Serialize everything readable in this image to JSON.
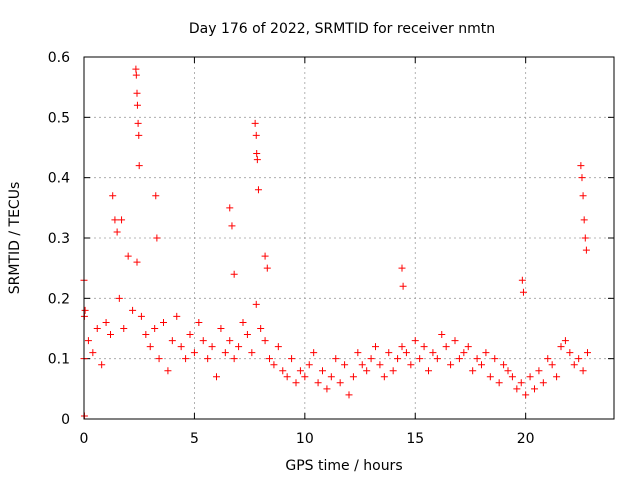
{
  "chart_data": {
    "type": "scatter",
    "title": "Day 176 of 2022, SRMTID for receiver nmtn",
    "xlabel": "GPS time / hours",
    "ylabel": "SRMTID / TECUs",
    "xlim": [
      0,
      24
    ],
    "ylim": [
      0,
      0.6
    ],
    "x_ticks": [
      0,
      5,
      10,
      15,
      20
    ],
    "x_tick_labels": [
      "0",
      "5",
      "10",
      "15",
      "20"
    ],
    "y_ticks": [
      0,
      0.1,
      0.2,
      0.3,
      0.4,
      0.5,
      0.6
    ],
    "y_tick_labels": [
      "0",
      "0.1",
      "0.2",
      "0.3",
      "0.4",
      "0.5",
      "0.6"
    ],
    "grid": true,
    "marker": "plus",
    "color": "#ff0000",
    "series": [
      {
        "name": "SRMTID",
        "x": [
          0.0,
          0.02,
          0.05,
          0.2,
          0.4,
          0.6,
          0.8,
          1.0,
          1.2,
          1.4,
          1.6,
          1.8,
          2.0,
          2.2,
          2.4,
          2.6,
          2.8,
          3.0,
          3.2,
          3.4,
          3.6,
          3.8,
          4.0,
          4.2,
          4.4,
          4.6,
          4.8,
          5.0,
          5.2,
          5.4,
          5.6,
          5.8,
          6.0,
          6.2,
          6.4,
          6.6,
          6.8,
          7.0,
          7.2,
          7.4,
          7.6,
          7.8,
          8.0,
          8.2,
          8.4,
          8.6,
          8.8,
          9.0,
          9.2,
          9.4,
          9.6,
          9.8,
          10.0,
          10.2,
          10.4,
          10.6,
          10.8,
          11.0,
          11.2,
          11.4,
          11.6,
          11.8,
          12.0,
          12.2,
          12.4,
          12.6,
          12.8,
          13.0,
          13.2,
          13.4,
          13.6,
          13.8,
          14.0,
          14.2,
          14.4,
          14.6,
          14.8,
          15.0,
          15.2,
          15.4,
          15.6,
          15.8,
          16.0,
          16.2,
          16.4,
          16.6,
          16.8,
          17.0,
          17.2,
          17.4,
          17.6,
          17.8,
          18.0,
          18.2,
          18.4,
          18.6,
          18.8,
          19.0,
          19.2,
          19.4,
          19.6,
          19.8,
          20.0,
          20.2,
          20.4,
          20.6,
          20.8,
          21.0,
          21.2,
          21.4,
          21.6,
          21.8,
          22.0,
          22.2,
          22.4,
          22.6,
          22.8,
          2.35,
          2.37,
          2.4,
          2.42,
          2.45,
          2.48,
          2.5,
          3.25,
          3.3,
          7.75,
          7.8,
          7.82,
          7.85,
          7.9,
          8.2,
          8.3,
          22.5,
          22.55,
          22.6,
          22.65,
          22.7,
          22.75,
          14.4,
          14.45,
          19.85,
          19.9,
          6.6,
          6.7,
          6.8,
          1.3,
          1.5,
          1.7,
          0.0,
          0.02
        ],
        "y": [
          0.1,
          0.17,
          0.18,
          0.13,
          0.11,
          0.15,
          0.09,
          0.16,
          0.14,
          0.33,
          0.2,
          0.15,
          0.27,
          0.18,
          0.26,
          0.17,
          0.14,
          0.12,
          0.15,
          0.1,
          0.16,
          0.08,
          0.13,
          0.17,
          0.12,
          0.1,
          0.14,
          0.11,
          0.16,
          0.13,
          0.1,
          0.12,
          0.07,
          0.15,
          0.11,
          0.13,
          0.1,
          0.12,
          0.16,
          0.14,
          0.11,
          0.19,
          0.15,
          0.13,
          0.1,
          0.09,
          0.12,
          0.08,
          0.07,
          0.1,
          0.06,
          0.08,
          0.07,
          0.09,
          0.11,
          0.06,
          0.08,
          0.05,
          0.07,
          0.1,
          0.06,
          0.09,
          0.04,
          0.07,
          0.11,
          0.09,
          0.08,
          0.1,
          0.12,
          0.09,
          0.07,
          0.11,
          0.08,
          0.1,
          0.12,
          0.11,
          0.09,
          0.13,
          0.1,
          0.12,
          0.08,
          0.11,
          0.1,
          0.14,
          0.12,
          0.09,
          0.13,
          0.1,
          0.11,
          0.12,
          0.08,
          0.1,
          0.09,
          0.11,
          0.07,
          0.1,
          0.06,
          0.09,
          0.08,
          0.07,
          0.05,
          0.06,
          0.04,
          0.07,
          0.05,
          0.08,
          0.06,
          0.1,
          0.09,
          0.07,
          0.12,
          0.13,
          0.11,
          0.09,
          0.1,
          0.08,
          0.11,
          0.58,
          0.57,
          0.54,
          0.52,
          0.49,
          0.47,
          0.42,
          0.37,
          0.3,
          0.49,
          0.47,
          0.44,
          0.43,
          0.38,
          0.27,
          0.25,
          0.42,
          0.4,
          0.37,
          0.33,
          0.3,
          0.28,
          0.25,
          0.22,
          0.23,
          0.21,
          0.35,
          0.32,
          0.24,
          0.37,
          0.31,
          0.33,
          0.23,
          0.005
        ]
      }
    ]
  }
}
